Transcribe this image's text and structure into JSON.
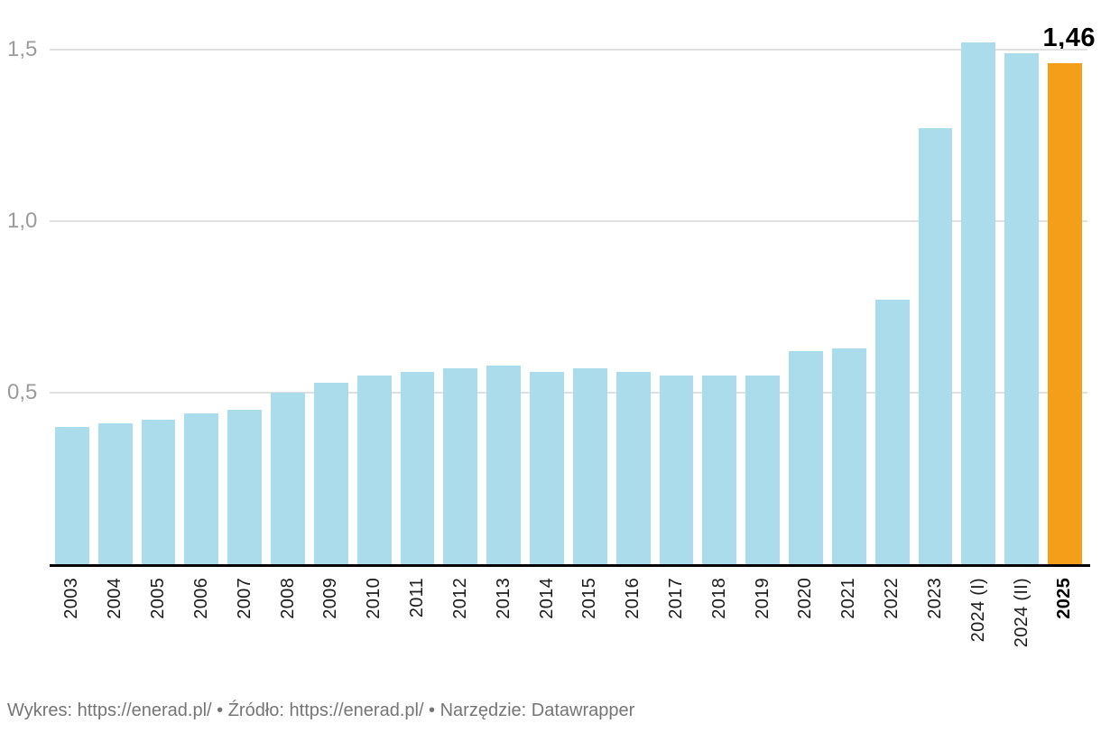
{
  "chart_data": {
    "type": "bar",
    "categories": [
      "2003",
      "2004",
      "2005",
      "2006",
      "2007",
      "2008",
      "2009",
      "2010",
      "2011",
      "2012",
      "2013",
      "2014",
      "2015",
      "2016",
      "2017",
      "2018",
      "2019",
      "2020",
      "2021",
      "2022",
      "2023",
      "2024 (I)",
      "2024 (II)",
      "2025"
    ],
    "values": [
      0.4,
      0.41,
      0.42,
      0.44,
      0.45,
      0.5,
      0.53,
      0.55,
      0.56,
      0.57,
      0.58,
      0.56,
      0.57,
      0.56,
      0.55,
      0.55,
      0.55,
      0.62,
      0.63,
      0.77,
      1.27,
      1.52,
      1.49,
      1.46
    ],
    "highlight_index": 23,
    "highlight_value_label": "1,46",
    "y_ticks": [
      {
        "value": 0.5,
        "label": "0,5"
      },
      {
        "value": 1.0,
        "label": "1,0"
      },
      {
        "value": 1.5,
        "label": "1,5"
      }
    ],
    "ylim": [
      0,
      1.5
    ],
    "grid": true,
    "legend_position": "none",
    "title": "",
    "xlabel": "",
    "ylabel": "",
    "colors": {
      "bar": "#aadcec",
      "highlight": "#f59e19",
      "grid": "#e0e0e0",
      "axis": "#000000",
      "y_tick_label": "#9b9b9b",
      "x_tick_label": "#1c1c1c",
      "x_tick_label_bold": "#000000",
      "value_label": "#000000",
      "footer_text": "#757575"
    }
  },
  "footer": {
    "full_text": "Wykres: https://enerad.pl/ • Źródło: https://enerad.pl/ • Narzędzie: Datawrapper",
    "parts": [
      {
        "text": "Wykres: ",
        "link": false
      },
      {
        "text": "https://enerad.pl/",
        "link": true
      },
      {
        "text": " • Źródło: ",
        "link": false
      },
      {
        "text": "https://enerad.pl/",
        "link": true
      },
      {
        "text": " • Narzędzie: ",
        "link": false
      },
      {
        "text": "Datawrapper",
        "link": true
      }
    ]
  }
}
